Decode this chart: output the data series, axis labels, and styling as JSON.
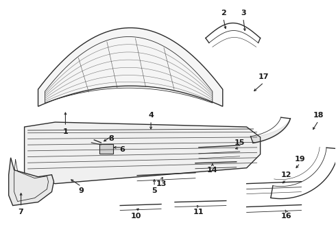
{
  "bg_color": "#ffffff",
  "line_color": "#2a2a2a",
  "text_color": "#1a1a1a",
  "figsize": [
    4.9,
    3.6
  ],
  "dpi": 100
}
